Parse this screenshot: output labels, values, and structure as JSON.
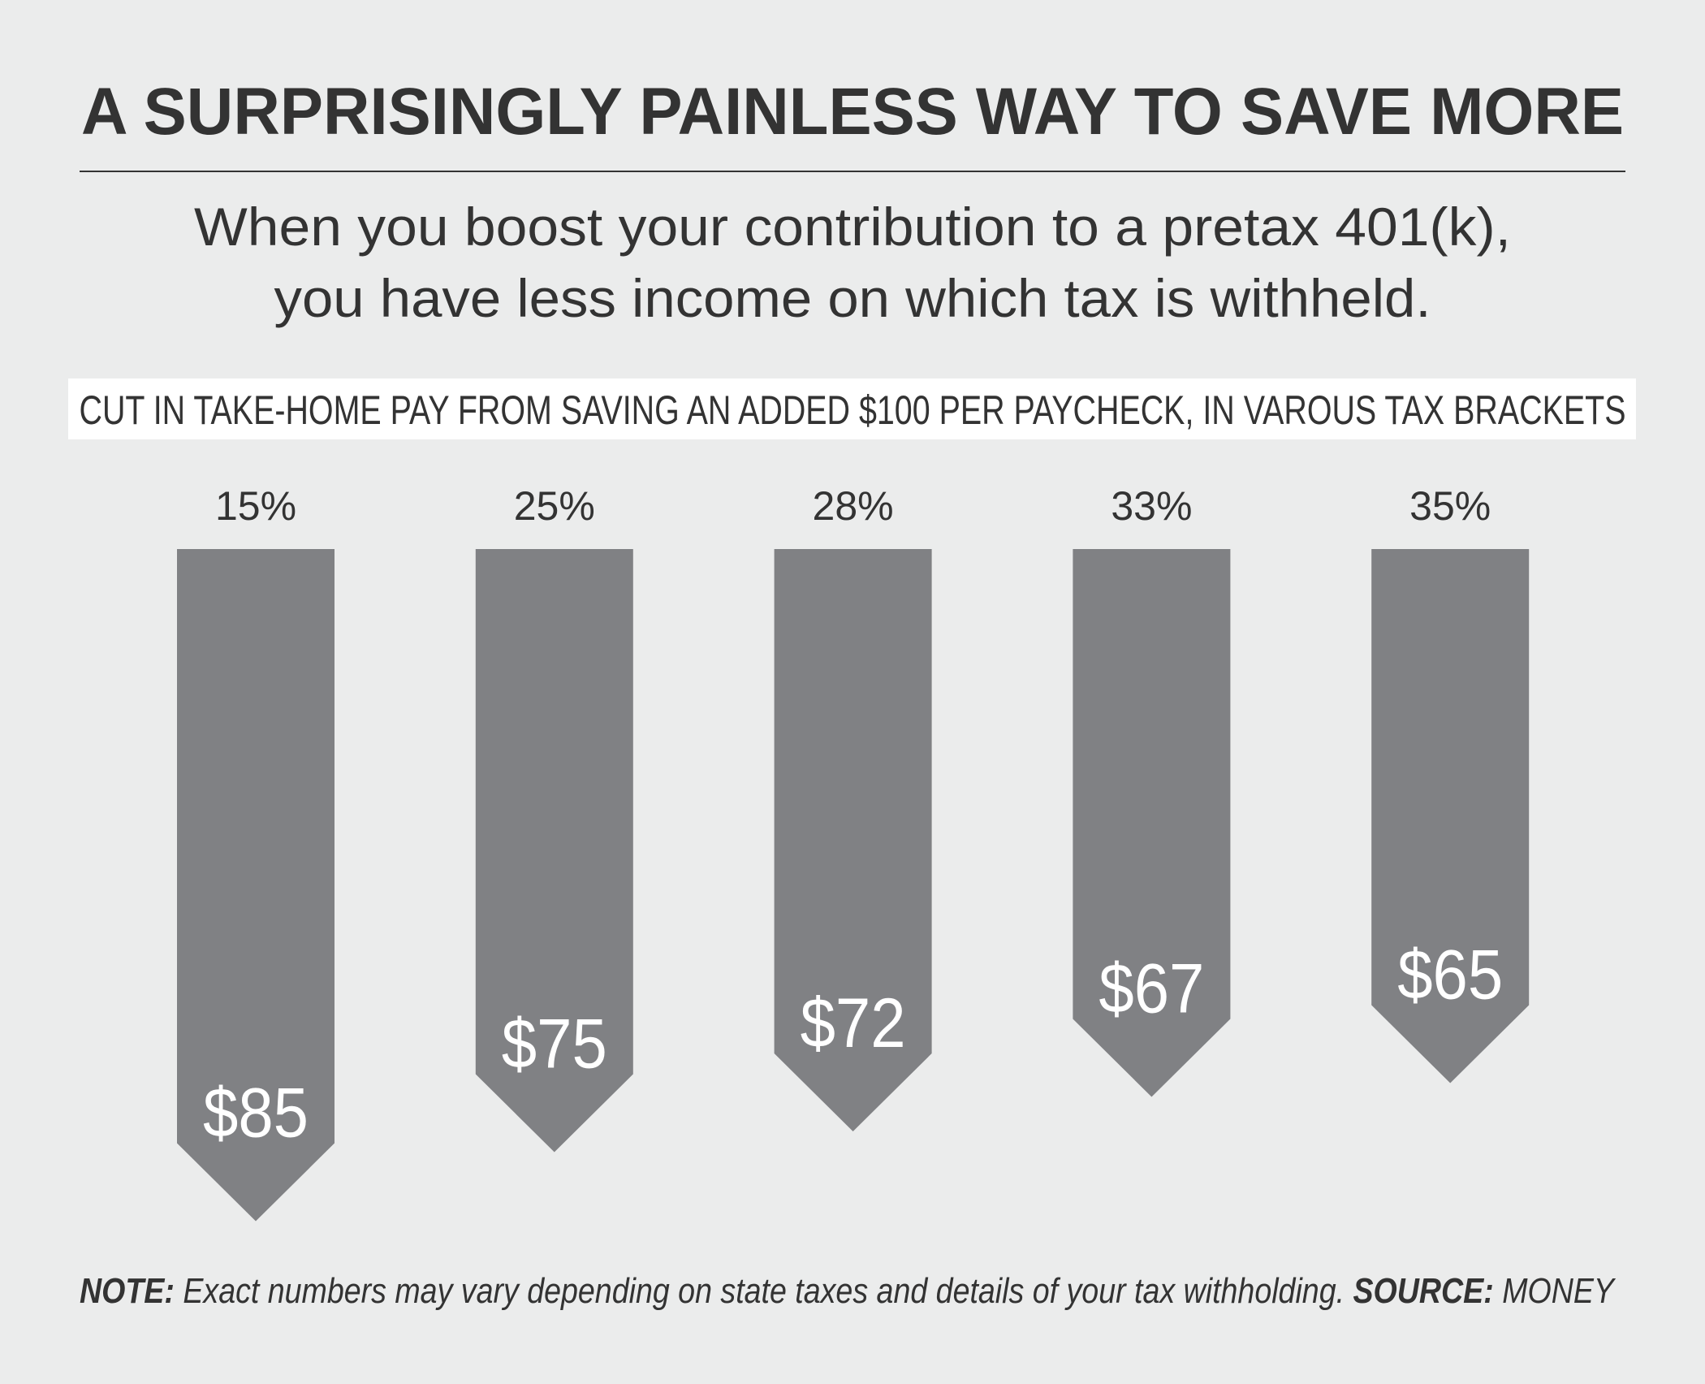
{
  "chart_data": {
    "type": "bar",
    "title": "A SURPRISINGLY PAINLESS WAY TO SAVE MORE",
    "subtitle": [
      "When you boost your contribution to a pretax 401(k),",
      "you have less income on which tax is withheld."
    ],
    "value_axis_label": "CUT IN TAKE-HOME PAY FROM SAVING AN ADDED $100 PER PAYCHECK, IN VAROUS TAX BRACKETS",
    "categories": [
      "15%",
      "25%",
      "28%",
      "33%",
      "35%"
    ],
    "values": [
      85,
      75,
      72,
      67,
      65
    ],
    "value_labels": [
      "$85",
      "$75",
      "$72",
      "$67",
      "$65"
    ],
    "color": "#808184",
    "note_label": "NOTE:",
    "note": "Exact numbers may vary depending on state taxes and details of your tax withholding.",
    "source_label": "SOURCE:",
    "source": "MONEY"
  }
}
